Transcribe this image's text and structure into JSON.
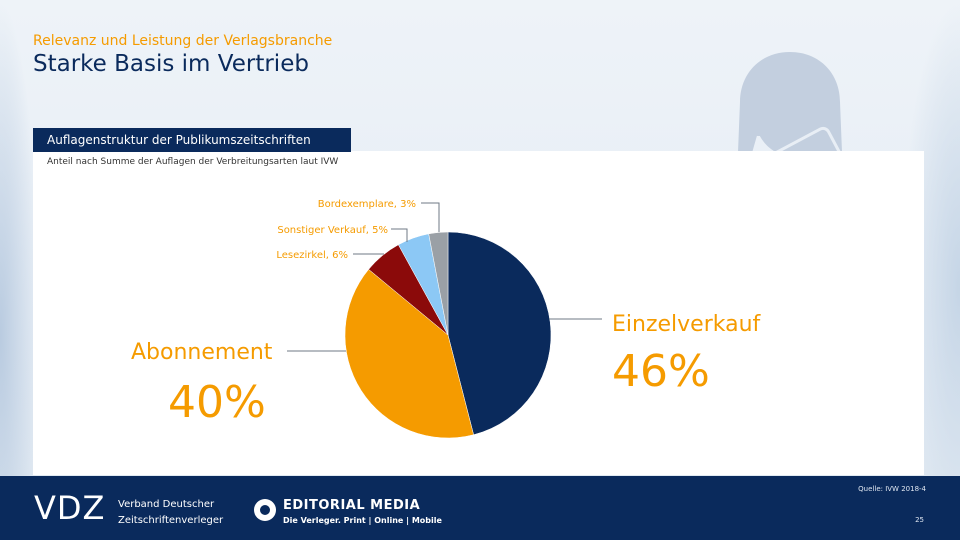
{
  "header": {
    "subtitle": "Relevanz und Leistung der Verlagsbranche",
    "title": "Starke Basis im Vertrieb"
  },
  "panel": {
    "tag": "Auflagenstruktur der Publikumszeitschriften",
    "description": "Anteil nach Summe der Auflagen der Verbreitungsarten laut IVW"
  },
  "chart_data": {
    "type": "pie",
    "unit": "%",
    "slices": [
      {
        "label": "Einzelverkauf",
        "value": 46,
        "value_label": "46%",
        "color": "#0a2a5c"
      },
      {
        "label": "Abonnement",
        "value": 40,
        "value_label": "40%",
        "color": "#f59b00"
      },
      {
        "label": "Lesezirkel",
        "value": 6,
        "value_label": "Lesezirkel, 6%",
        "color": "#8b0a0a"
      },
      {
        "label": "Sonstiger Verkauf",
        "value": 5,
        "value_label": "Sonstiger Verkauf, 5%",
        "color": "#8cc8f5"
      },
      {
        "label": "Bordexemplare",
        "value": 3,
        "value_label": "Bordexemplare, 3%",
        "color": "#9aa0a6"
      }
    ]
  },
  "footer": {
    "brand": "VDZ",
    "brand_line1": "Verband Deutscher",
    "brand_line2": "Zeitschriftenverleger",
    "partner": "EDITORIAL MEDIA",
    "partner_tagline": "Die Verleger. Print | Online | Mobile",
    "source": "Quelle: IVW 2018-4",
    "page": "25"
  },
  "colors": {
    "navy": "#0a2a5c",
    "orange": "#f59b00"
  },
  "icons": [
    "person-with-euro-card-icon",
    "editorial-media-logo-icon"
  ]
}
